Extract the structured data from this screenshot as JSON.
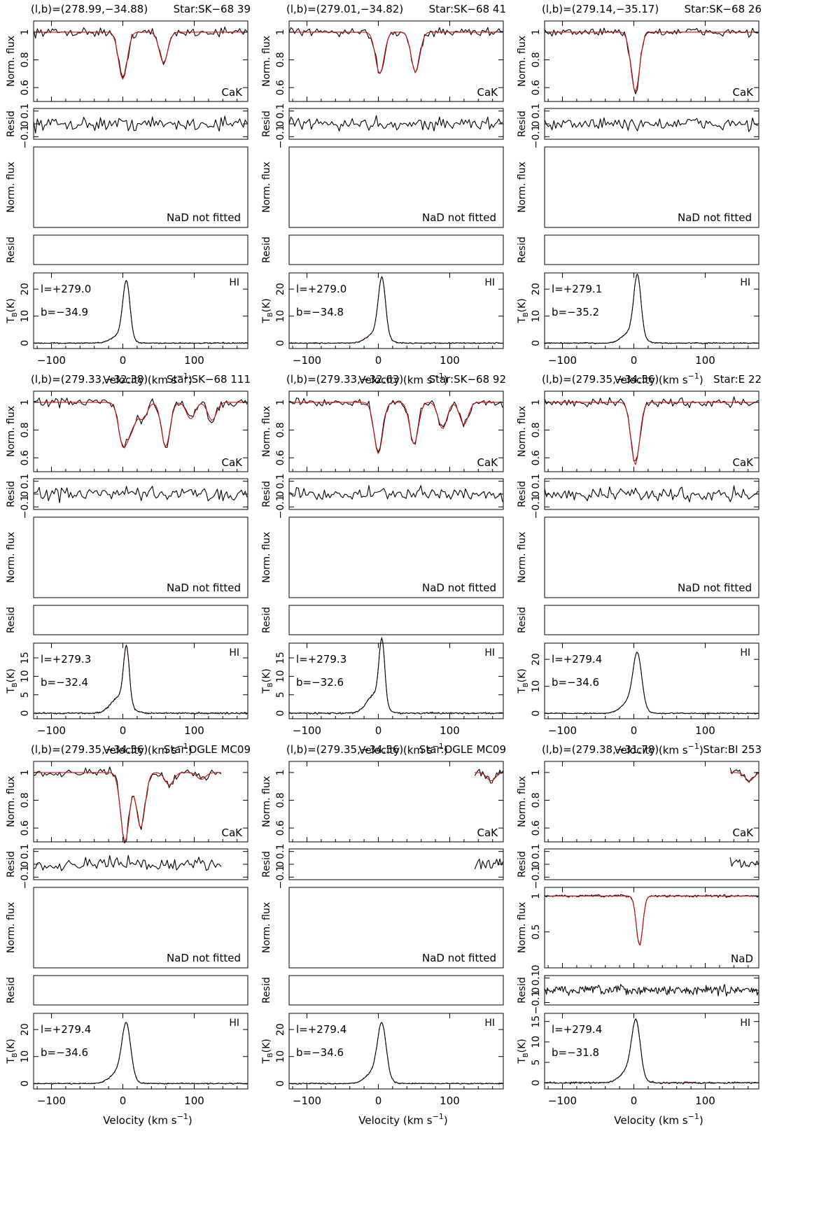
{
  "chart_data": {
    "type": "line",
    "layout": "3x3 grid of stacked spectra",
    "colors": {
      "observed": "#000000",
      "model_fit": "#d01010"
    },
    "shared": {
      "xlabel": "Velocity (km s",
      "xlabel_sup": "−1",
      "xlabel_close": ")",
      "xlim": [
        -125,
        175
      ],
      "x_ticks": [
        -100,
        0,
        100
      ],
      "cak_ylabel": "Norm. flux",
      "cak_yticks": [
        "0.6",
        "0.8",
        "1"
      ],
      "cak_ylim": [
        0.5,
        1.08
      ],
      "resid_ylabel": "Resid",
      "resid_yticks": [
        "−0.1",
        "0",
        "0.1"
      ],
      "nad_ylabel": "Norm. flux",
      "hi_ylabel_main": "T",
      "hi_ylabel_sub": "B",
      "hi_ylabel_unit": "(K)",
      "cak_label": "CaK",
      "nad_label": "NaD",
      "nad_not_fitted": "NaD not fitted",
      "hi_label": "HI"
    },
    "panels": [
      {
        "coords": "(l,b)=(278.99,−34.88)",
        "star": "Star:SK−68 39",
        "l": "l=+279.0",
        "b": "b=−34.9",
        "cak": [
          [
            0,
            0.34
          ],
          [
            57,
            0.22
          ]
        ],
        "cak_range": [
          -125,
          175
        ],
        "nad": null,
        "hi": {
          "peak": 21,
          "v0": 5,
          "w": 5,
          "wing": [
            -4,
            11,
            3
          ],
          "yticks": [
            "0",
            "10",
            "20"
          ],
          "ylim": [
            -2,
            26
          ]
        }
      },
      {
        "coords": "(l,b)=(279.01,−34.82)",
        "star": "Star:SK−68 41",
        "l": "l=+279.0",
        "b": "b=−34.8",
        "cak": [
          [
            2,
            0.3
          ],
          [
            52,
            0.29
          ]
        ],
        "cak_range": [
          -125,
          175
        ],
        "nad": null,
        "hi": {
          "peak": 21,
          "v0": 5,
          "w": 5,
          "wing": [
            -2,
            12,
            4
          ],
          "yticks": [
            "0",
            "10",
            "20"
          ],
          "ylim": [
            -2,
            26
          ]
        }
      },
      {
        "coords": "(l,b)=(279.14,−35.17)",
        "star": "Star:SK−68 26",
        "l": "l=+279.1",
        "b": "b=−35.2",
        "cak": [
          [
            2,
            0.43
          ]
        ],
        "cak_range": [
          -125,
          175
        ],
        "nad": null,
        "hi": {
          "peak": 22,
          "v0": 5,
          "w": 5,
          "wing": [
            -3,
            12,
            4
          ],
          "yticks": [
            "0",
            "10",
            "20"
          ],
          "ylim": [
            -2,
            26
          ]
        }
      },
      {
        "coords": "(l,b)=(279.33,−32.38)",
        "star": "Star:SK−68 111",
        "l": "l=+279.3",
        "b": "b=−32.4",
        "cak": [
          [
            0,
            0.3
          ],
          [
            12,
            0.18
          ],
          [
            28,
            0.12
          ],
          [
            60,
            0.32
          ],
          [
            95,
            0.12
          ],
          [
            125,
            0.13
          ]
        ],
        "cak_range": [
          -125,
          175
        ],
        "nad": null,
        "hi": {
          "peak": 15,
          "v0": 5,
          "w": 4,
          "wing": [
            -4,
            12,
            6
          ],
          "yticks": [
            "0",
            "5",
            "10",
            "15"
          ],
          "ylim": [
            -1.5,
            19
          ]
        }
      },
      {
        "coords": "(l,b)=(279.33,−32.63)",
        "star": "Star:SK−68 92",
        "l": "l=+279.3",
        "b": "b=−32.6",
        "cak": [
          [
            0,
            0.37
          ],
          [
            50,
            0.3
          ],
          [
            90,
            0.19
          ],
          [
            120,
            0.16
          ]
        ],
        "cak_range": [
          -125,
          175
        ],
        "nad": null,
        "hi": {
          "peak": 17,
          "v0": 5,
          "w": 4,
          "wing": [
            -5,
            11,
            6
          ],
          "yticks": [
            "0",
            "5",
            "10",
            "15"
          ],
          "ylim": [
            -1.5,
            19
          ]
        }
      },
      {
        "coords": "(l,b)=(279.35,−34.56)",
        "star": "Star:E 22",
        "l": "l=+279.4",
        "b": "b=−34.6",
        "cak": [
          [
            2,
            0.45
          ]
        ],
        "cak_range": [
          -125,
          175
        ],
        "nad": null,
        "hi": {
          "peak": 19,
          "v0": 5,
          "w": 6,
          "wing": [
            -4,
            12,
            5
          ],
          "yticks": [
            "0",
            "10",
            "20"
          ],
          "ylim": [
            -2,
            26
          ]
        }
      },
      {
        "coords": "(l,b)=(279.35,−34.56)",
        "star": "Star:OGLE MC09",
        "l": "l=+279.4",
        "b": "b=−34.6",
        "cak": [
          [
            3,
            0.5
          ],
          [
            25,
            0.4
          ],
          [
            65,
            0.09
          ],
          [
            110,
            0.05
          ]
        ],
        "cak_range": [
          -125,
          140
        ],
        "nad": null,
        "hi": {
          "peak": 19,
          "v0": 5,
          "w": 6,
          "wing": [
            -4,
            12,
            5
          ],
          "yticks": [
            "0",
            "10",
            "20"
          ],
          "ylim": [
            -2,
            26
          ]
        }
      },
      {
        "coords": "(l,b)=(279.35,−34.56)",
        "star": "Star:OGLE MC09",
        "l": "l=+279.4",
        "b": "b=−34.6",
        "cak": [
          [
            158,
            0.06
          ]
        ],
        "cak_range": [
          135,
          175
        ],
        "nad": null,
        "hi": {
          "peak": 19,
          "v0": 5,
          "w": 6,
          "wing": [
            -4,
            12,
            5
          ],
          "yticks": [
            "0",
            "10",
            "20"
          ],
          "ylim": [
            -2,
            26
          ]
        }
      },
      {
        "coords": "(l,b)=(279.38,−31.78)",
        "star": "Star:BI 253",
        "l": "l=+279.4",
        "b": "b=−31.8",
        "cak": [
          [
            162,
            0.06
          ]
        ],
        "cak_range": [
          135,
          175
        ],
        "nad": {
          "lines": [
            [
              8,
              0.68
            ]
          ],
          "yticks": [
            "0",
            "0.5",
            "1"
          ],
          "ylim": [
            0,
            1.12
          ]
        },
        "hi": {
          "peak": 13,
          "v0": 3,
          "w": 6,
          "wing": [
            -6,
            12,
            5
          ],
          "yticks": [
            "0",
            "5",
            "10",
            "15"
          ],
          "ylim": [
            -1.5,
            17
          ]
        }
      }
    ]
  }
}
